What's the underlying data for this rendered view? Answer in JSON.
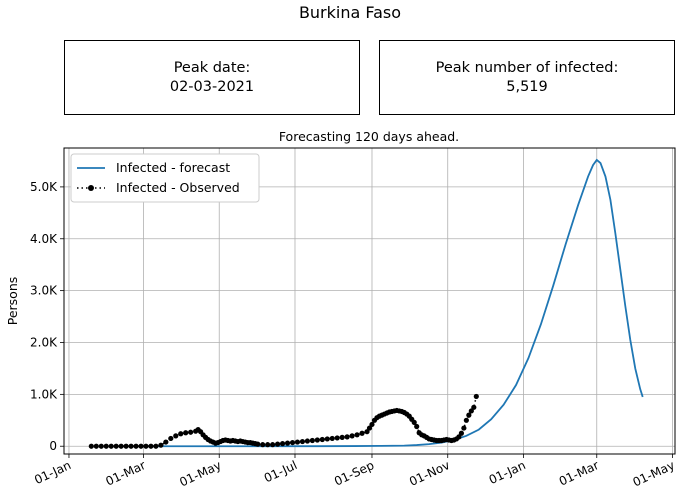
{
  "page": {
    "title": "Burkina Faso"
  },
  "peak_date_box": {
    "label": "Peak date:",
    "value": "02-03-2021"
  },
  "peak_infected_box": {
    "label": "Peak number of infected:",
    "value": "5,519"
  },
  "chart_data": {
    "type": "line",
    "title": "Forecasting 120 days ahead.",
    "xlabel": "",
    "ylabel": "Persons",
    "x_range": [
      "2020-01-01",
      "2021-05-01"
    ],
    "xlim": [
      -4,
      488
    ],
    "ylim": [
      -150,
      5750
    ],
    "grid": true,
    "legend": "top-left",
    "x_ticks": [
      {
        "day": 0,
        "label": "01-Jan"
      },
      {
        "day": 60,
        "label": "01-Mar"
      },
      {
        "day": 121,
        "label": "01-May"
      },
      {
        "day": 182,
        "label": "01-Jul"
      },
      {
        "day": 244,
        "label": "01-Sep"
      },
      {
        "day": 305,
        "label": "01-Nov"
      },
      {
        "day": 366,
        "label": "01-Jan"
      },
      {
        "day": 425,
        "label": "01-Mar"
      },
      {
        "day": 486,
        "label": "01-May"
      }
    ],
    "y_ticks": [
      {
        "value": 0,
        "label": "0"
      },
      {
        "value": 1000,
        "label": "1.0K"
      },
      {
        "value": 2000,
        "label": "2.0K"
      },
      {
        "value": 3000,
        "label": "3.0K"
      },
      {
        "value": 4000,
        "label": "4.0K"
      },
      {
        "value": 5000,
        "label": "5.0K"
      }
    ],
    "series": [
      {
        "name": "Infected - forecast",
        "color": "#1f77b4",
        "style": "solid",
        "points": [
          [
            60,
            0
          ],
          [
            100,
            0
          ],
          [
            150,
            0
          ],
          [
            200,
            1
          ],
          [
            230,
            3
          ],
          [
            250,
            6
          ],
          [
            270,
            12
          ],
          [
            280,
            22
          ],
          [
            290,
            40
          ],
          [
            300,
            70
          ],
          [
            310,
            120
          ],
          [
            320,
            200
          ],
          [
            330,
            320
          ],
          [
            340,
            520
          ],
          [
            350,
            800
          ],
          [
            360,
            1180
          ],
          [
            370,
            1700
          ],
          [
            380,
            2350
          ],
          [
            390,
            3100
          ],
          [
            400,
            3900
          ],
          [
            410,
            4650
          ],
          [
            418,
            5200
          ],
          [
            422,
            5420
          ],
          [
            425,
            5519
          ],
          [
            428,
            5460
          ],
          [
            432,
            5200
          ],
          [
            436,
            4750
          ],
          [
            440,
            4100
          ],
          [
            444,
            3400
          ],
          [
            448,
            2700
          ],
          [
            452,
            2050
          ],
          [
            456,
            1500
          ],
          [
            460,
            1100
          ],
          [
            462,
            950
          ]
        ]
      },
      {
        "name": "Infected - Observed",
        "color": "#000000",
        "style": "dotted-with-markers",
        "points": [
          [
            18,
            0
          ],
          [
            22,
            0
          ],
          [
            26,
            0
          ],
          [
            30,
            0
          ],
          [
            34,
            0
          ],
          [
            38,
            0
          ],
          [
            42,
            0
          ],
          [
            46,
            0
          ],
          [
            50,
            0
          ],
          [
            54,
            0
          ],
          [
            58,
            0
          ],
          [
            62,
            0
          ],
          [
            66,
            0
          ],
          [
            70,
            0
          ],
          [
            74,
            20
          ],
          [
            78,
            80
          ],
          [
            82,
            150
          ],
          [
            86,
            200
          ],
          [
            90,
            240
          ],
          [
            94,
            260
          ],
          [
            98,
            270
          ],
          [
            102,
            290
          ],
          [
            104,
            320
          ],
          [
            106,
            280
          ],
          [
            108,
            220
          ],
          [
            110,
            170
          ],
          [
            112,
            130
          ],
          [
            114,
            100
          ],
          [
            116,
            80
          ],
          [
            118,
            60
          ],
          [
            120,
            70
          ],
          [
            122,
            90
          ],
          [
            124,
            110
          ],
          [
            126,
            120
          ],
          [
            128,
            110
          ],
          [
            130,
            100
          ],
          [
            132,
            110
          ],
          [
            134,
            100
          ],
          [
            136,
            90
          ],
          [
            138,
            100
          ],
          [
            140,
            90
          ],
          [
            142,
            80
          ],
          [
            144,
            70
          ],
          [
            146,
            70
          ],
          [
            148,
            60
          ],
          [
            150,
            50
          ],
          [
            152,
            40
          ],
          [
            156,
            30
          ],
          [
            160,
            30
          ],
          [
            164,
            30
          ],
          [
            168,
            40
          ],
          [
            172,
            50
          ],
          [
            176,
            60
          ],
          [
            180,
            70
          ],
          [
            184,
            80
          ],
          [
            188,
            90
          ],
          [
            192,
            100
          ],
          [
            196,
            110
          ],
          [
            200,
            120
          ],
          [
            204,
            130
          ],
          [
            208,
            140
          ],
          [
            212,
            150
          ],
          [
            216,
            160
          ],
          [
            220,
            170
          ],
          [
            224,
            180
          ],
          [
            228,
            200
          ],
          [
            232,
            220
          ],
          [
            236,
            250
          ],
          [
            240,
            280
          ],
          [
            242,
            350
          ],
          [
            244,
            420
          ],
          [
            246,
            500
          ],
          [
            248,
            550
          ],
          [
            250,
            580
          ],
          [
            252,
            600
          ],
          [
            254,
            620
          ],
          [
            256,
            640
          ],
          [
            258,
            660
          ],
          [
            260,
            670
          ],
          [
            262,
            680
          ],
          [
            264,
            690
          ],
          [
            266,
            680
          ],
          [
            268,
            670
          ],
          [
            270,
            650
          ],
          [
            272,
            620
          ],
          [
            274,
            580
          ],
          [
            276,
            520
          ],
          [
            278,
            460
          ],
          [
            280,
            380
          ],
          [
            282,
            260
          ],
          [
            284,
            220
          ],
          [
            286,
            200
          ],
          [
            288,
            170
          ],
          [
            290,
            140
          ],
          [
            292,
            130
          ],
          [
            294,
            120
          ],
          [
            296,
            110
          ],
          [
            298,
            110
          ],
          [
            300,
            110
          ],
          [
            302,
            120
          ],
          [
            304,
            130
          ],
          [
            306,
            120
          ],
          [
            308,
            110
          ],
          [
            310,
            120
          ],
          [
            312,
            140
          ],
          [
            314,
            180
          ],
          [
            316,
            250
          ],
          [
            318,
            350
          ],
          [
            320,
            500
          ],
          [
            322,
            600
          ],
          [
            324,
            680
          ],
          [
            326,
            750
          ],
          [
            328,
            960
          ]
        ]
      }
    ]
  }
}
